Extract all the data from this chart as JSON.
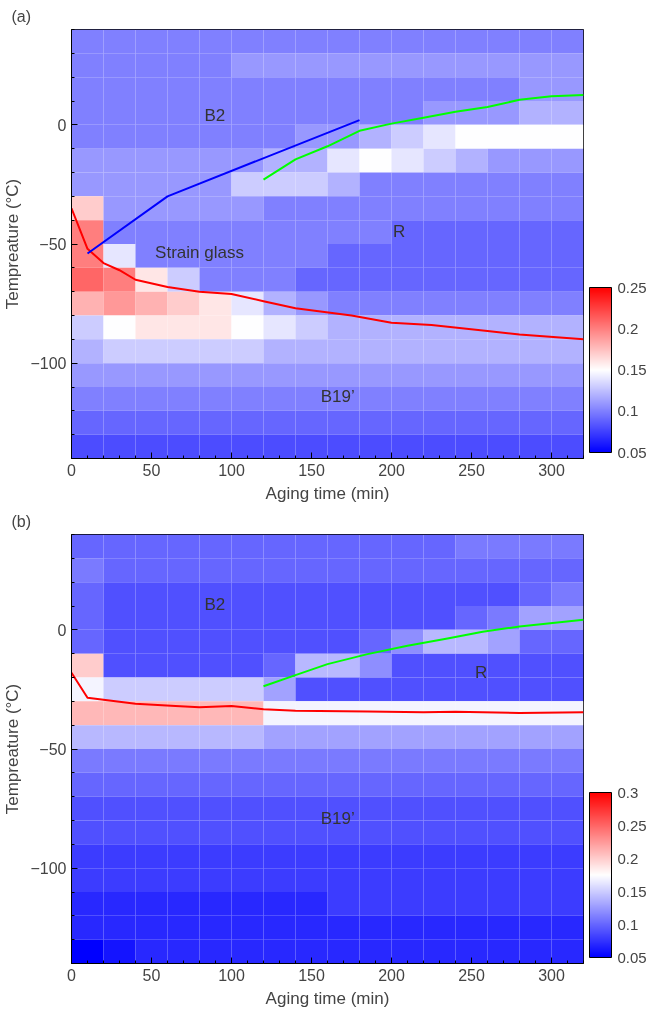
{
  "chart_data": [
    {
      "type": "heatmap",
      "title": "(a)",
      "xlabel": "Aging time (min)",
      "ylabel": "Tempreature (°C)",
      "x": [
        10,
        30,
        50,
        70,
        90,
        110,
        130,
        150,
        170,
        190,
        210,
        230,
        250,
        270,
        290,
        310
      ],
      "y": [
        35,
        25,
        15,
        5,
        -5,
        -15,
        -25,
        -35,
        -45,
        -55,
        -65,
        -75,
        -85,
        -95,
        -105,
        -115,
        -125,
        -135
      ],
      "cells": [
        [
          0.1,
          0.1,
          0.1,
          0.1,
          0.1,
          0.1,
          0.1,
          0.1,
          0.1,
          0.1,
          0.1,
          0.1,
          0.1,
          0.1,
          0.1,
          0.1
        ],
        [
          0.1,
          0.1,
          0.1,
          0.1,
          0.1,
          0.11,
          0.11,
          0.11,
          0.11,
          0.11,
          0.11,
          0.11,
          0.11,
          0.11,
          0.11,
          0.11
        ],
        [
          0.1,
          0.1,
          0.1,
          0.1,
          0.1,
          0.1,
          0.1,
          0.1,
          0.1,
          0.1,
          0.1,
          0.1,
          0.1,
          0.1,
          0.11,
          0.11
        ],
        [
          0.1,
          0.1,
          0.1,
          0.1,
          0.1,
          0.1,
          0.1,
          0.1,
          0.1,
          0.1,
          0.1,
          0.11,
          0.11,
          0.11,
          0.12,
          0.12
        ],
        [
          0.1,
          0.1,
          0.1,
          0.1,
          0.1,
          0.1,
          0.1,
          0.11,
          0.11,
          0.12,
          0.13,
          0.14,
          0.15,
          0.15,
          0.15,
          0.15
        ],
        [
          0.11,
          0.11,
          0.11,
          0.11,
          0.11,
          0.11,
          0.12,
          0.12,
          0.14,
          0.15,
          0.14,
          0.13,
          0.12,
          0.11,
          0.11,
          0.11
        ],
        [
          0.11,
          0.11,
          0.11,
          0.11,
          0.11,
          0.13,
          0.13,
          0.13,
          0.12,
          0.1,
          0.1,
          0.1,
          0.1,
          0.1,
          0.1,
          0.1
        ],
        [
          0.17,
          0.11,
          0.11,
          0.11,
          0.11,
          0.11,
          0.1,
          0.1,
          0.1,
          0.1,
          0.1,
          0.1,
          0.1,
          0.1,
          0.1,
          0.1
        ],
        [
          0.2,
          0.1,
          0.1,
          0.1,
          0.1,
          0.1,
          0.1,
          0.1,
          0.1,
          0.1,
          0.09,
          0.09,
          0.09,
          0.09,
          0.09,
          0.09
        ],
        [
          0.2,
          0.14,
          0.1,
          0.1,
          0.1,
          0.1,
          0.1,
          0.1,
          0.09,
          0.09,
          0.09,
          0.09,
          0.09,
          0.09,
          0.09,
          0.09
        ],
        [
          0.21,
          0.2,
          0.16,
          0.13,
          0.1,
          0.1,
          0.1,
          0.09,
          0.09,
          0.09,
          0.09,
          0.09,
          0.09,
          0.09,
          0.09,
          0.09
        ],
        [
          0.18,
          0.19,
          0.18,
          0.17,
          0.16,
          0.14,
          0.12,
          0.11,
          0.1,
          0.1,
          0.1,
          0.1,
          0.1,
          0.1,
          0.1,
          0.1
        ],
        [
          0.13,
          0.15,
          0.16,
          0.16,
          0.16,
          0.15,
          0.14,
          0.13,
          0.12,
          0.12,
          0.12,
          0.12,
          0.12,
          0.12,
          0.12,
          0.12
        ],
        [
          0.12,
          0.13,
          0.13,
          0.13,
          0.13,
          0.13,
          0.12,
          0.12,
          0.12,
          0.12,
          0.12,
          0.12,
          0.12,
          0.12,
          0.12,
          0.12
        ],
        [
          0.11,
          0.11,
          0.11,
          0.11,
          0.11,
          0.11,
          0.11,
          0.11,
          0.11,
          0.11,
          0.11,
          0.11,
          0.11,
          0.11,
          0.11,
          0.11
        ],
        [
          0.1,
          0.1,
          0.1,
          0.1,
          0.1,
          0.1,
          0.1,
          0.1,
          0.1,
          0.1,
          0.1,
          0.1,
          0.1,
          0.1,
          0.1,
          0.1
        ],
        [
          0.09,
          0.09,
          0.09,
          0.09,
          0.09,
          0.09,
          0.09,
          0.09,
          0.09,
          0.09,
          0.09,
          0.09,
          0.09,
          0.09,
          0.09,
          0.09
        ],
        [
          0.08,
          0.08,
          0.08,
          0.08,
          0.08,
          0.08,
          0.08,
          0.08,
          0.08,
          0.08,
          0.08,
          0.08,
          0.08,
          0.08,
          0.08,
          0.08
        ]
      ],
      "colors": [
        "#0000ff",
        "#ffffff",
        "#ff0000"
      ],
      "clim": [
        0.05,
        0.25
      ],
      "cticks": [
        0.05,
        0.1,
        0.15,
        0.2,
        0.25
      ],
      "xlim": [
        0,
        320
      ],
      "ylim": [
        -140,
        40
      ],
      "xticks": [
        0,
        50,
        100,
        150,
        200,
        250,
        300
      ],
      "yticks": [
        -100,
        -50,
        0
      ],
      "grid": false,
      "series": [
        {
          "type": "line",
          "color": "#ff0000",
          "x": [
            0,
            10,
            20,
            30,
            40,
            60,
            80,
            100,
            120,
            140,
            175,
            200,
            225,
            260,
            280,
            320
          ],
          "values": [
            -35,
            -52,
            -58,
            -61,
            -65,
            -68,
            -70,
            -71,
            -74,
            -77,
            -80,
            -83,
            -84,
            -86.5,
            -88,
            -90
          ]
        },
        {
          "type": "line",
          "color": "#0000ff",
          "x": [
            10,
            60,
            180
          ],
          "values": [
            -54,
            -30,
            2
          ]
        },
        {
          "type": "line",
          "color": "#00ff00",
          "x": [
            120,
            140,
            160,
            180,
            200,
            220,
            240,
            260,
            280,
            300,
            320
          ],
          "values": [
            -23,
            -14.5,
            -9,
            -2.5,
            0.5,
            3,
            5.5,
            7.5,
            10.5,
            12,
            12.5
          ]
        }
      ],
      "annotations": [
        "B2",
        "Strain glass",
        "R",
        "B19’"
      ]
    },
    {
      "type": "heatmap",
      "title": "(b)",
      "xlabel": "Aging time (min)",
      "ylabel": "Tempreature (°C)",
      "x": [
        10,
        30,
        50,
        70,
        90,
        110,
        130,
        150,
        170,
        190,
        210,
        230,
        250,
        270,
        290,
        310
      ],
      "y": [
        35,
        25,
        15,
        5,
        -5,
        -15,
        -25,
        -35,
        -45,
        -55,
        -65,
        -75,
        -85,
        -95,
        -105,
        -115,
        -125,
        -135
      ],
      "cells": [
        [
          0.1,
          0.1,
          0.1,
          0.1,
          0.1,
          0.1,
          0.1,
          0.1,
          0.1,
          0.1,
          0.1,
          0.1,
          0.11,
          0.11,
          0.11,
          0.11
        ],
        [
          0.11,
          0.1,
          0.1,
          0.1,
          0.1,
          0.1,
          0.1,
          0.1,
          0.1,
          0.1,
          0.1,
          0.1,
          0.1,
          0.1,
          0.1,
          0.1
        ],
        [
          0.1,
          0.09,
          0.09,
          0.09,
          0.09,
          0.09,
          0.09,
          0.09,
          0.09,
          0.09,
          0.09,
          0.09,
          0.09,
          0.09,
          0.1,
          0.11
        ],
        [
          0.1,
          0.09,
          0.09,
          0.09,
          0.09,
          0.09,
          0.09,
          0.09,
          0.09,
          0.09,
          0.09,
          0.09,
          0.1,
          0.11,
          0.13,
          0.13
        ],
        [
          0.1,
          0.09,
          0.09,
          0.09,
          0.09,
          0.09,
          0.09,
          0.09,
          0.09,
          0.1,
          0.12,
          0.14,
          0.14,
          0.13,
          0.1,
          0.1
        ],
        [
          0.2,
          0.09,
          0.09,
          0.09,
          0.09,
          0.09,
          0.1,
          0.14,
          0.14,
          0.12,
          0.09,
          0.09,
          0.09,
          0.09,
          0.09,
          0.09
        ],
        [
          0.17,
          0.15,
          0.15,
          0.15,
          0.15,
          0.15,
          0.13,
          0.09,
          0.09,
          0.09,
          0.09,
          0.09,
          0.09,
          0.09,
          0.09,
          0.09
        ],
        [
          0.21,
          0.21,
          0.21,
          0.21,
          0.21,
          0.21,
          0.17,
          0.17,
          0.17,
          0.17,
          0.17,
          0.17,
          0.17,
          0.17,
          0.17,
          0.17
        ],
        [
          0.14,
          0.14,
          0.14,
          0.14,
          0.14,
          0.14,
          0.13,
          0.13,
          0.13,
          0.13,
          0.13,
          0.13,
          0.13,
          0.13,
          0.13,
          0.13
        ],
        [
          0.11,
          0.11,
          0.11,
          0.11,
          0.11,
          0.11,
          0.11,
          0.11,
          0.11,
          0.11,
          0.11,
          0.11,
          0.11,
          0.11,
          0.11,
          0.11
        ],
        [
          0.1,
          0.1,
          0.1,
          0.1,
          0.1,
          0.1,
          0.1,
          0.1,
          0.1,
          0.1,
          0.1,
          0.1,
          0.1,
          0.1,
          0.1,
          0.1
        ],
        [
          0.09,
          0.09,
          0.09,
          0.09,
          0.09,
          0.09,
          0.09,
          0.09,
          0.09,
          0.09,
          0.09,
          0.09,
          0.09,
          0.09,
          0.09,
          0.09
        ],
        [
          0.09,
          0.09,
          0.09,
          0.09,
          0.09,
          0.09,
          0.09,
          0.09,
          0.09,
          0.09,
          0.09,
          0.09,
          0.09,
          0.09,
          0.09,
          0.09
        ],
        [
          0.08,
          0.08,
          0.08,
          0.08,
          0.08,
          0.08,
          0.08,
          0.08,
          0.08,
          0.08,
          0.08,
          0.08,
          0.08,
          0.08,
          0.08,
          0.08
        ],
        [
          0.08,
          0.08,
          0.08,
          0.08,
          0.08,
          0.08,
          0.08,
          0.08,
          0.08,
          0.08,
          0.08,
          0.08,
          0.08,
          0.08,
          0.08,
          0.08
        ],
        [
          0.07,
          0.07,
          0.07,
          0.07,
          0.07,
          0.07,
          0.07,
          0.07,
          0.08,
          0.08,
          0.08,
          0.08,
          0.08,
          0.08,
          0.08,
          0.08
        ],
        [
          0.07,
          0.07,
          0.07,
          0.07,
          0.07,
          0.07,
          0.07,
          0.07,
          0.07,
          0.07,
          0.07,
          0.07,
          0.07,
          0.07,
          0.07,
          0.07
        ],
        [
          0.05,
          0.06,
          0.07,
          0.07,
          0.07,
          0.07,
          0.07,
          0.07,
          0.07,
          0.07,
          0.07,
          0.07,
          0.07,
          0.07,
          0.07,
          0.07
        ]
      ],
      "colors": [
        "#0000ff",
        "#ffffff",
        "#ff0000"
      ],
      "clim": [
        0.05,
        0.3
      ],
      "cticks": [
        0.05,
        0.1,
        0.15,
        0.2,
        0.25,
        0.3
      ],
      "xlim": [
        0,
        320
      ],
      "ylim": [
        -140,
        40
      ],
      "xticks": [
        0,
        50,
        100,
        150,
        200,
        250,
        300
      ],
      "yticks": [
        -100,
        -50,
        0
      ],
      "grid": false,
      "series": [
        {
          "type": "line",
          "color": "#ff0000",
          "x": [
            0,
            10,
            40,
            65,
            80,
            100,
            120,
            140,
            185,
            220,
            240,
            280,
            320
          ],
          "values": [
            -18,
            -28.5,
            -31,
            -32,
            -32.5,
            -32,
            -33.3,
            -34,
            -34.3,
            -34.6,
            -34.4,
            -34.9,
            -34.6
          ]
        },
        {
          "type": "line",
          "color": "#00ff00",
          "x": [
            120,
            140,
            160,
            185,
            210,
            235,
            257,
            280,
            320
          ],
          "values": [
            -23.7,
            -19,
            -14.4,
            -10.2,
            -6.7,
            -3.6,
            -0.8,
            1.4,
            4.2
          ]
        }
      ],
      "annotations": [
        "B2",
        "R",
        "B19’"
      ]
    }
  ]
}
